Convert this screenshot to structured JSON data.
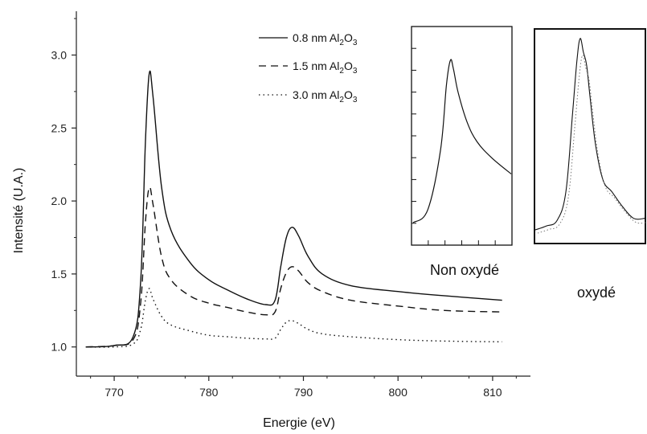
{
  "chart_data": {
    "type": "line",
    "xlabel": "Energie (eV)",
    "ylabel": "Intensité (U.A.)",
    "xlim": [
      766,
      814
    ],
    "ylim": [
      0.8,
      3.3
    ],
    "xticks": [
      770,
      780,
      790,
      800,
      810
    ],
    "yticks": [
      1.0,
      1.5,
      2.0,
      2.5,
      3.0
    ],
    "xtick_labels": [
      "770",
      "780",
      "790",
      "800",
      "810"
    ],
    "ytick_labels": [
      "1.0",
      "1.5",
      "2.0",
      "2.5",
      "3.0"
    ],
    "grid": false,
    "legend_position": "top-right",
    "x": [
      767,
      770,
      772,
      772.8,
      773.3,
      773.7,
      774.1,
      775,
      776,
      778,
      780,
      782,
      784,
      786,
      787,
      787.6,
      788.2,
      788.8,
      789.5,
      790.5,
      792,
      795,
      800,
      805,
      811
    ],
    "series": [
      {
        "name": "0.8 nm Al2O3",
        "legend": {
          "prefix": "0.8 nm Al",
          "sub1": "2",
          "mid": "O",
          "sub2": "3"
        },
        "style": "solid",
        "values": [
          1.0,
          1.01,
          1.07,
          1.45,
          2.4,
          2.87,
          2.72,
          2.1,
          1.8,
          1.58,
          1.46,
          1.39,
          1.33,
          1.29,
          1.32,
          1.55,
          1.75,
          1.82,
          1.76,
          1.62,
          1.5,
          1.42,
          1.38,
          1.35,
          1.32
        ]
      },
      {
        "name": "1.5 nm Al2O3",
        "legend": {
          "prefix": "1.5 nm Al",
          "sub1": "2",
          "mid": "O",
          "sub2": "3"
        },
        "style": "dashed",
        "values": [
          1.0,
          1.01,
          1.05,
          1.3,
          1.85,
          2.09,
          1.98,
          1.62,
          1.46,
          1.35,
          1.3,
          1.27,
          1.24,
          1.22,
          1.24,
          1.4,
          1.51,
          1.55,
          1.52,
          1.44,
          1.38,
          1.32,
          1.28,
          1.25,
          1.24
        ]
      },
      {
        "name": "3.0 nm Al2O3",
        "legend": {
          "prefix": "3.0 nm Al",
          "sub1": "2",
          "mid": "O",
          "sub2": "3"
        },
        "style": "dotted",
        "values": [
          1.0,
          1.0,
          1.02,
          1.12,
          1.32,
          1.4,
          1.33,
          1.21,
          1.15,
          1.11,
          1.08,
          1.07,
          1.06,
          1.055,
          1.06,
          1.12,
          1.17,
          1.18,
          1.16,
          1.12,
          1.09,
          1.07,
          1.05,
          1.04,
          1.035
        ]
      }
    ],
    "insets": [
      {
        "caption": "Non oxydé",
        "x": [
          0,
          0.15,
          0.28,
          0.34,
          0.38,
          0.41,
          0.46,
          0.55,
          0.65,
          0.8,
          1.0
        ],
        "values": [
          0.0,
          0.08,
          0.45,
          0.85,
          1.0,
          0.95,
          0.8,
          0.62,
          0.5,
          0.4,
          0.3
        ]
      },
      {
        "caption": "oxydé",
        "x": [
          0,
          0.1,
          0.2,
          0.28,
          0.34,
          0.38,
          0.41,
          0.44,
          0.47,
          0.5,
          0.55,
          0.62,
          0.7,
          0.8,
          0.9,
          1.0
        ],
        "values": [
          0.0,
          0.02,
          0.05,
          0.2,
          0.6,
          0.88,
          1.0,
          0.93,
          0.86,
          0.7,
          0.45,
          0.26,
          0.2,
          0.12,
          0.06,
          0.06
        ]
      }
    ]
  }
}
